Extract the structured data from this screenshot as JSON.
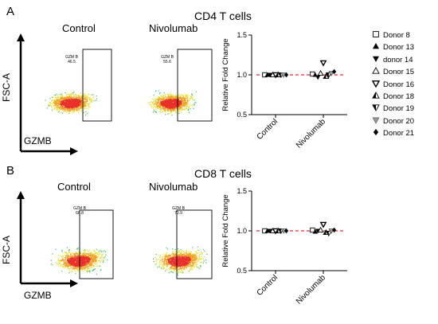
{
  "panels": [
    {
      "letter": "A",
      "title": "CD4 T cells",
      "flow": {
        "conditions": [
          "Control",
          "Nivolumab"
        ],
        "gate_label": "GZM B",
        "gate_values": [
          "46.5",
          "55.6"
        ],
        "y_axis": "FSC-A",
        "x_axis": "GZMB"
      }
    },
    {
      "letter": "B",
      "title": "CD8 T cells",
      "flow": {
        "conditions": [
          "Control",
          "Nivolumab"
        ],
        "gate_label": "GZM B",
        "gate_values": [
          "66.8",
          "70.9"
        ],
        "y_axis": "FSC-A",
        "x_axis": "GZMB"
      }
    }
  ],
  "legend": [
    {
      "name": "Donor 8",
      "symbol": "open-square"
    },
    {
      "name": "Donor 13",
      "symbol": "filled-triangle-up"
    },
    {
      "name": "donor 14",
      "symbol": "filled-triangle-down"
    },
    {
      "name": "Donor 15",
      "symbol": "open-triangle-up"
    },
    {
      "name": "Donor 16",
      "symbol": "open-triangle-down"
    },
    {
      "name": "Donor 18",
      "symbol": "half-triangle-up"
    },
    {
      "name": "Donor 19",
      "symbol": "half-triangle-down"
    },
    {
      "name": "Donor 20",
      "symbol": "gray-triangle-down"
    },
    {
      "name": "Donor 21",
      "symbol": "filled-diamond"
    }
  ],
  "chart_data": [
    {
      "type": "scatter",
      "title": "",
      "xlabel": "",
      "ylabel": "Relative Fold Change",
      "categories": [
        "Control",
        "Nivolumab"
      ],
      "ylim": [
        0.5,
        1.5
      ],
      "yticks": [
        "0.5",
        "1.0",
        "1.5"
      ],
      "reference_line": {
        "value": 1.0,
        "color": "#e8302a",
        "style": "dashed"
      },
      "series": [
        {
          "name": "Donor 8",
          "values": [
            1.0,
            1.01
          ]
        },
        {
          "name": "Donor 13",
          "values": [
            1.0,
            1.0
          ]
        },
        {
          "name": "donor 14",
          "values": [
            1.0,
            0.97
          ]
        },
        {
          "name": "Donor 15",
          "values": [
            1.0,
            1.02
          ]
        },
        {
          "name": "Donor 16",
          "values": [
            1.0,
            1.15
          ]
        },
        {
          "name": "Donor 18",
          "values": [
            1.0,
            0.98
          ]
        },
        {
          "name": "Donor 19",
          "values": [
            1.0,
            1.0
          ]
        },
        {
          "name": "Donor 20",
          "values": [
            1.0,
            1.02
          ]
        },
        {
          "name": "Donor 21",
          "values": [
            1.0,
            1.04
          ]
        }
      ]
    },
    {
      "type": "scatter",
      "title": "",
      "xlabel": "",
      "ylabel": "Relative Fold Change",
      "categories": [
        "Control",
        "Nivolumab"
      ],
      "ylim": [
        0.5,
        1.5
      ],
      "yticks": [
        "0.5",
        "1.0",
        "1.5"
      ],
      "reference_line": {
        "value": 1.0,
        "color": "#e8302a",
        "style": "dashed"
      },
      "series": [
        {
          "name": "Donor 8",
          "values": [
            1.0,
            1.01
          ]
        },
        {
          "name": "Donor 13",
          "values": [
            1.0,
            0.99
          ]
        },
        {
          "name": "donor 14",
          "values": [
            1.0,
            1.0
          ]
        },
        {
          "name": "Donor 15",
          "values": [
            1.0,
            1.01
          ]
        },
        {
          "name": "Donor 16",
          "values": [
            1.0,
            1.08
          ]
        },
        {
          "name": "Donor 18",
          "values": [
            1.0,
            0.98
          ]
        },
        {
          "name": "Donor 19",
          "values": [
            1.0,
            0.97
          ]
        },
        {
          "name": "Donor 20",
          "values": [
            1.0,
            1.0
          ]
        },
        {
          "name": "Donor 21",
          "values": [
            1.0,
            1.01
          ]
        }
      ]
    }
  ]
}
